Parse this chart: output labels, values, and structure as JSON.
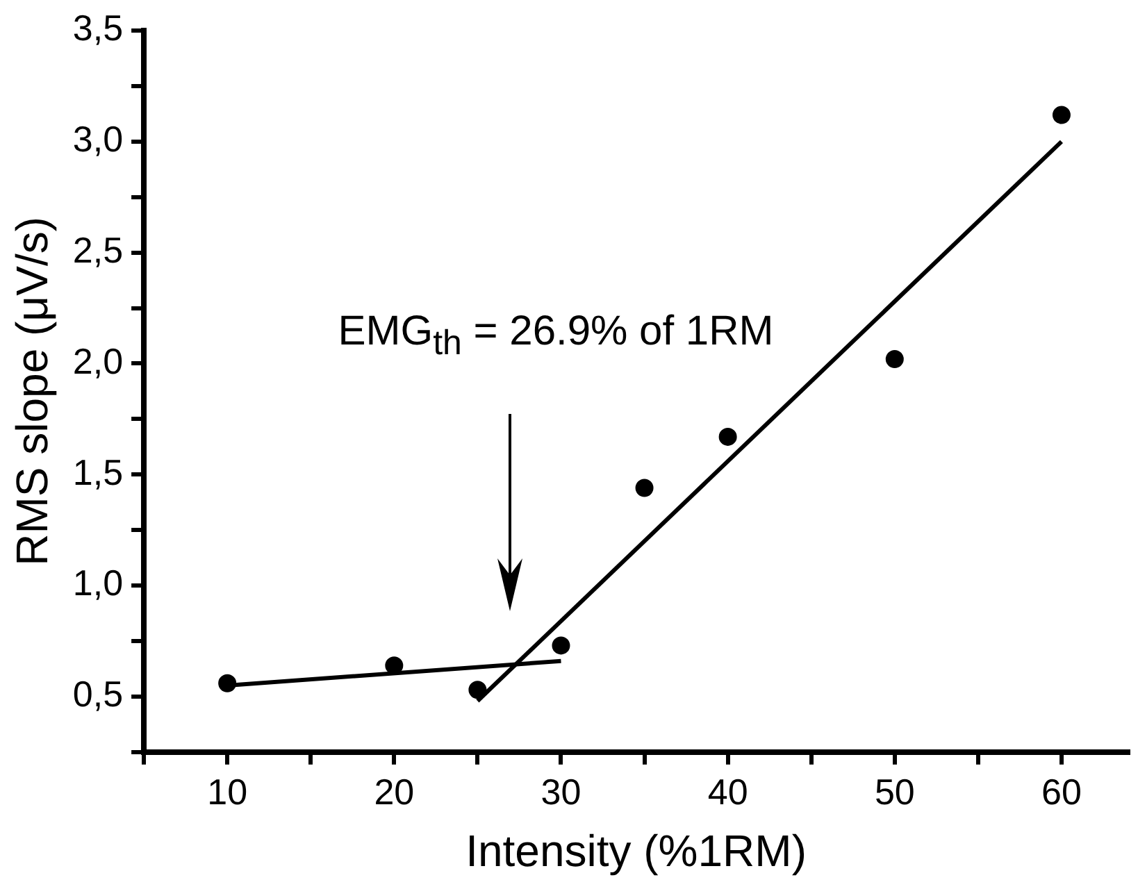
{
  "chart_data": {
    "type": "scatter",
    "xlabel": "Intensity (%1RM)",
    "ylabel": "RMS slope (μV/s)",
    "xlim": [
      5,
      64
    ],
    "ylim": [
      0.25,
      3.5
    ],
    "xticks": [
      {
        "value": 5,
        "label": null
      },
      10,
      {
        "value": 15,
        "label": null
      },
      20,
      {
        "value": 25,
        "label": null
      },
      30,
      {
        "value": 35,
        "label": null
      },
      40,
      {
        "value": 45,
        "label": null
      },
      50,
      {
        "value": 55,
        "label": null
      },
      60
    ],
    "yticks": [
      {
        "value": 0.25,
        "label": null
      },
      {
        "value": 0.5,
        "label": "0,5"
      },
      {
        "value": 0.75,
        "label": null
      },
      {
        "value": 1.0,
        "label": "1,0"
      },
      {
        "value": 1.25,
        "label": null
      },
      {
        "value": 1.5,
        "label": "1,5"
      },
      {
        "value": 1.75,
        "label": null
      },
      {
        "value": 2.0,
        "label": "2,0"
      },
      {
        "value": 2.25,
        "label": null
      },
      {
        "value": 2.5,
        "label": "2,5"
      },
      {
        "value": 2.75,
        "label": null
      },
      {
        "value": 3.0,
        "label": "3,0"
      },
      {
        "value": 3.25,
        "label": null
      },
      {
        "value": 3.5,
        "label": "3,5"
      }
    ],
    "grid": false,
    "legend": false,
    "marker": "circle",
    "series": [
      {
        "color": "#000000",
        "x": [
          10,
          20,
          25,
          30,
          35,
          40,
          50,
          60
        ],
        "values": [
          0.56,
          0.64,
          0.53,
          0.73,
          1.44,
          1.67,
          2.02,
          3.12
        ]
      },
      {
        "type": "line",
        "color": "#000000",
        "marker": "none",
        "x": [
          10,
          30
        ],
        "values": [
          0.55,
          0.66
        ]
      },
      {
        "type": "line",
        "color": "#000000",
        "marker": "none",
        "x": [
          25,
          60
        ],
        "values": [
          0.48,
          3.0
        ]
      }
    ],
    "annotations": [
      "EMG$_{th}$ = 26.9% of 1RM"
    ]
  }
}
